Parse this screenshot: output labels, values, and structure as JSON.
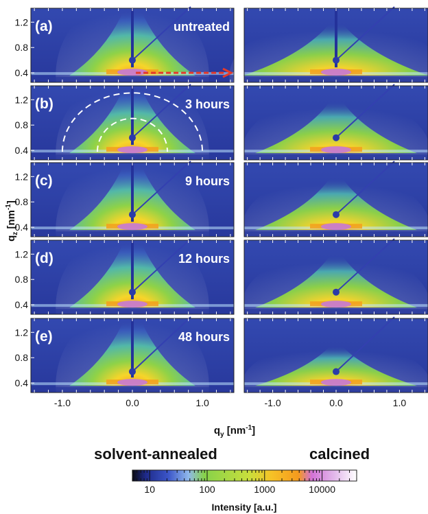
{
  "chart_data": {
    "type": "heatmap",
    "description_columns": [
      "solvent-annealed",
      "calcined"
    ],
    "xlabel": "q_y [nm^-1]",
    "xlabel_main": "q",
    "xlabel_sub": "y",
    "xlabel_unit_pre": " [nm",
    "xlabel_unit_sup": "-1",
    "xlabel_unit_post": "]",
    "ylabel_main": "q",
    "ylabel_sub": "z",
    "ylabel_unit_pre": " [nm",
    "ylabel_unit_sup": "-1",
    "ylabel_unit_post": "]",
    "x_ticks": [
      "-1.0",
      "0.0",
      "1.0"
    ],
    "x_tick_values": [
      -1.0,
      0.0,
      1.0
    ],
    "xlim": [
      -1.45,
      1.45
    ],
    "y_ticks": [
      "1.2",
      "0.8",
      "0.4"
    ],
    "y_tick_values": [
      1.2,
      0.8,
      0.4
    ],
    "ylim": [
      0.25,
      1.42
    ],
    "rows": [
      {
        "label": "(a)",
        "time": "untreated"
      },
      {
        "label": "(b)",
        "time": "3 hours"
      },
      {
        "label": "(c)",
        "time": "9 hours"
      },
      {
        "label": "(d)",
        "time": "12 hours"
      },
      {
        "label": "(e)",
        "time": "48 hours"
      }
    ],
    "colorbar": {
      "title": "Intensity [a.u.]",
      "scale": "log",
      "range": [
        5,
        40000
      ],
      "ticks": [
        "10",
        "100",
        "1000",
        "10000"
      ],
      "tick_values": [
        10,
        100,
        1000,
        10000
      ]
    },
    "colors": {
      "background": "#2a3fa8",
      "low": "#3a5cc4",
      "mid": "#7fd34a",
      "high": "#f3b22a",
      "peak": "#c77bd6",
      "annotation_arrow": "#e53a2a",
      "annotation_circle": "#ffffff"
    }
  }
}
